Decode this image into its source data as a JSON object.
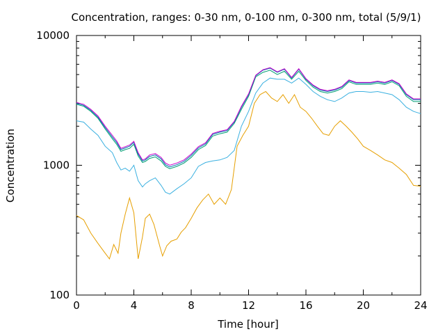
{
  "chart_data": {
    "type": "line",
    "title": "Concentration, ranges: 0-30 nm, 0-100 nm, 0-300 nm, total (5/9/1)",
    "xlabel": "Time [hour]",
    "ylabel": "Concentration",
    "xlim": [
      0,
      24
    ],
    "ylim": [
      100,
      10000
    ],
    "yscale": "log",
    "grid": false,
    "xticks": [
      0,
      4,
      8,
      12,
      16,
      20,
      24
    ],
    "xtick_labels": [
      "0",
      "4",
      "8",
      "12",
      "16",
      "20",
      "24"
    ],
    "yticks": [
      100,
      1000,
      10000
    ],
    "ytick_labels": [
      "100",
      "1000",
      "10000"
    ],
    "series": [
      {
        "color": "#e69f00",
        "x": [
          0,
          0.5,
          1,
          1.5,
          2,
          2.3,
          2.6,
          2.9,
          3.1,
          3.4,
          3.7,
          4,
          4.3,
          4.6,
          4.8,
          5.1,
          5.4,
          5.8,
          6,
          6.3,
          6.6,
          7,
          7.3,
          7.6,
          8,
          8.4,
          8.8,
          9.2,
          9.6,
          10,
          10.4,
          10.8,
          11.2,
          11.6,
          12,
          12.4,
          12.8,
          13.2,
          13.6,
          14,
          14.4,
          14.8,
          15.2,
          15.6,
          16,
          16.4,
          16.8,
          17.2,
          17.6,
          18,
          18.4,
          18.8,
          19.2,
          19.6,
          20,
          20.5,
          21,
          21.5,
          22,
          22.5,
          23,
          23.5,
          24
        ],
        "y": [
          410,
          380,
          300,
          250,
          210,
          190,
          245,
          210,
          300,
          420,
          560,
          430,
          190,
          280,
          390,
          420,
          350,
          240,
          200,
          240,
          260,
          270,
          305,
          330,
          390,
          470,
          540,
          600,
          500,
          560,
          500,
          650,
          1400,
          1700,
          2000,
          3000,
          3500,
          3700,
          3300,
          3100,
          3500,
          3000,
          3500,
          2800,
          2600,
          2300,
          2000,
          1750,
          1700,
          2000,
          2200,
          2000,
          1800,
          1600,
          1400,
          1300,
          1200,
          1100,
          1050,
          950,
          850,
          700,
          690
        ]
      },
      {
        "color": "#3ab0e0",
        "x": [
          0,
          0.5,
          1,
          1.5,
          2,
          2.5,
          2.8,
          3.1,
          3.4,
          3.7,
          4,
          4.3,
          4.6,
          4.8,
          5.1,
          5.5,
          5.9,
          6.2,
          6.5,
          7,
          7.5,
          8,
          8.5,
          9,
          9.5,
          10,
          10.5,
          11,
          11.5,
          12,
          12.5,
          13,
          13.5,
          14,
          14.5,
          15,
          15.5,
          16,
          16.5,
          17,
          17.5,
          18,
          18.5,
          19,
          19.5,
          20,
          20.5,
          21,
          21.5,
          22,
          22.5,
          23,
          23.5,
          24
        ],
        "y": [
          2200,
          2150,
          1900,
          1700,
          1400,
          1250,
          1050,
          920,
          950,
          900,
          1000,
          760,
          680,
          720,
          760,
          800,
          700,
          620,
          600,
          660,
          720,
          800,
          980,
          1050,
          1080,
          1100,
          1150,
          1300,
          2000,
          2600,
          3600,
          4300,
          4700,
          4600,
          4600,
          4300,
          4700,
          4200,
          3700,
          3400,
          3200,
          3100,
          3300,
          3600,
          3700,
          3700,
          3650,
          3700,
          3600,
          3500,
          3200,
          2800,
          2600,
          2500
        ]
      },
      {
        "color": "#009e73",
        "x": [
          0,
          0.5,
          1,
          1.5,
          2,
          2.5,
          2.8,
          3.1,
          3.4,
          3.7,
          4,
          4.3,
          4.6,
          4.8,
          5.1,
          5.5,
          5.9,
          6.2,
          6.5,
          7,
          7.5,
          8,
          8.5,
          9,
          9.5,
          10,
          10.5,
          11,
          11.5,
          12,
          12.5,
          13,
          13.5,
          14,
          14.5,
          15,
          15.5,
          16,
          16.5,
          17,
          17.5,
          18,
          18.5,
          19,
          19.5,
          20,
          20.5,
          21,
          21.5,
          22,
          22.5,
          23,
          23.5,
          24
        ],
        "y": [
          2950,
          2850,
          2600,
          2300,
          1900,
          1600,
          1450,
          1280,
          1320,
          1350,
          1450,
          1180,
          1050,
          1070,
          1130,
          1160,
          1080,
          980,
          940,
          980,
          1040,
          1150,
          1320,
          1420,
          1680,
          1750,
          1800,
          2100,
          2700,
          3400,
          4800,
          5200,
          5400,
          5000,
          5300,
          4600,
          5300,
          4500,
          4000,
          3700,
          3600,
          3700,
          3900,
          4400,
          4200,
          4200,
          4200,
          4300,
          4200,
          4400,
          4100,
          3400,
          3100,
          3100
        ]
      },
      {
        "color": "#0072b2",
        "x": [
          0,
          0.5,
          1,
          1.5,
          2,
          2.5,
          2.8,
          3.1,
          3.4,
          3.7,
          4,
          4.3,
          4.6,
          4.8,
          5.1,
          5.5,
          5.9,
          6.2,
          6.5,
          7,
          7.5,
          8,
          8.5,
          9,
          9.5,
          10,
          10.5,
          11,
          11.5,
          12,
          12.5,
          13,
          13.5,
          14,
          14.5,
          15,
          15.5,
          16,
          16.5,
          17,
          17.5,
          18,
          18.5,
          19,
          19.5,
          20,
          20.5,
          21,
          21.5,
          22,
          22.5,
          23,
          23.5,
          24
        ],
        "y": [
          3000,
          2900,
          2650,
          2350,
          1950,
          1650,
          1500,
          1320,
          1360,
          1400,
          1500,
          1220,
          1080,
          1100,
          1170,
          1200,
          1120,
          1010,
          970,
          1010,
          1070,
          1190,
          1360,
          1460,
          1730,
          1800,
          1850,
          2150,
          2800,
          3500,
          4900,
          5400,
          5600,
          5200,
          5500,
          4700,
          5500,
          4600,
          4100,
          3800,
          3700,
          3800,
          4000,
          4500,
          4300,
          4300,
          4300,
          4400,
          4300,
          4500,
          4200,
          3500,
          3200,
          3200
        ]
      },
      {
        "color": "#cc00cc",
        "x": [
          0,
          0.5,
          1,
          1.5,
          2,
          2.5,
          2.8,
          3.1,
          3.4,
          3.7,
          4,
          4.3,
          4.6,
          4.8,
          5.1,
          5.5,
          5.9,
          6.2,
          6.5,
          7,
          7.5,
          8,
          8.5,
          9,
          9.5,
          10,
          10.5,
          11,
          11.5,
          12,
          12.5,
          13,
          13.5,
          14,
          14.5,
          15,
          15.5,
          16,
          16.5,
          17,
          17.5,
          18,
          18.5,
          19,
          19.5,
          20,
          20.5,
          21,
          21.5,
          22,
          22.5,
          23,
          23.5,
          24
        ],
        "y": [
          3050,
          2950,
          2700,
          2400,
          2000,
          1700,
          1540,
          1350,
          1390,
          1430,
          1530,
          1250,
          1100,
          1120,
          1200,
          1230,
          1150,
          1040,
          1000,
          1040,
          1100,
          1220,
          1390,
          1490,
          1760,
          1830,
          1880,
          2180,
          2850,
          3550,
          4950,
          5450,
          5650,
          5250,
          5550,
          4750,
          5550,
          4650,
          4150,
          3850,
          3750,
          3850,
          4050,
          4550,
          4350,
          4350,
          4350,
          4450,
          4350,
          4550,
          4250,
          3550,
          3250,
          3250
        ]
      }
    ]
  }
}
